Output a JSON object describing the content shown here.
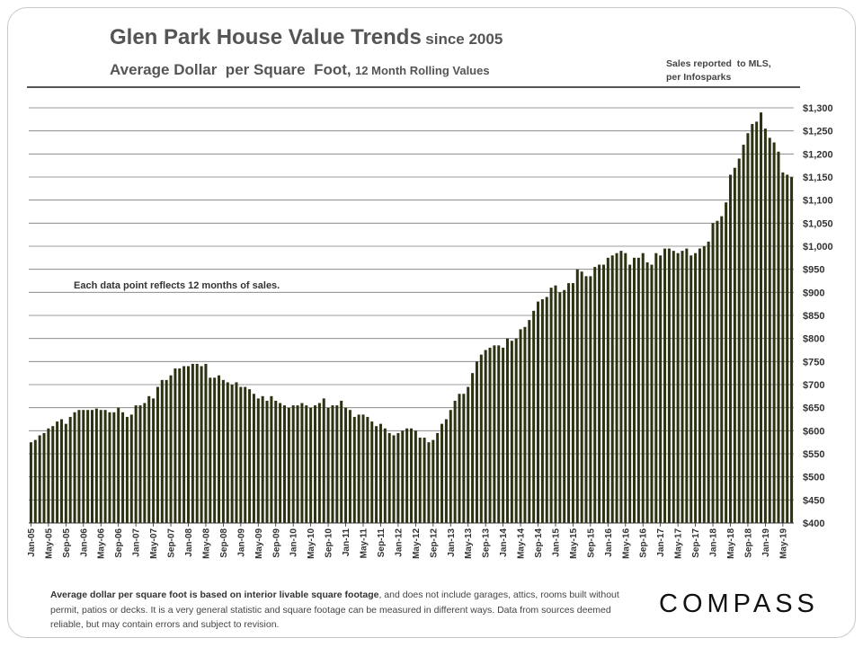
{
  "header": {
    "title": "Glen Park House Value Trends",
    "title_suffix": "since 2005",
    "subtitle": "Average Dollar  per Square  Foot,",
    "subtitle_suffix": "12 Month Rolling Values",
    "source_line1": "Sales reported  to MLS,",
    "source_line2": "per Infosparks"
  },
  "annotation": "Each data point reflects 12 months of sales.",
  "footnote": {
    "bold": "Average dollar per square foot is based on interior livable square footage",
    "rest": ", and does not include garages, attics, rooms built without permit, patios or decks. It is a very general statistic and square footage can be measured in different ways. Data from sources deemed reliable, but may contain errors and subject to revision."
  },
  "logo": "COMPASS",
  "chart_data": {
    "type": "bar",
    "title": "Glen Park House Value Trends since 2005",
    "ylabel": "Average Dollar per Square Foot",
    "ylim": [
      400,
      1300
    ],
    "ytick_step": 50,
    "yticks": [
      "$400",
      "$450",
      "$500",
      "$550",
      "$600",
      "$650",
      "$700",
      "$750",
      "$800",
      "$850",
      "$900",
      "$950",
      "$1,000",
      "$1,050",
      "$1,100",
      "$1,150",
      "$1,200",
      "$1,250",
      "$1,300"
    ],
    "x_tick_labels": [
      "Jan-05",
      "May-05",
      "Sep-05",
      "Jan-06",
      "May-06",
      "Sep-06",
      "Jan-07",
      "May-07",
      "Sep-07",
      "Jan-08",
      "May-08",
      "Sep-08",
      "Jan-09",
      "May-09",
      "Sep-09",
      "Jan-10",
      "May-10",
      "Sep-10",
      "Jan-11",
      "May-11",
      "Sep-11",
      "Jan-12",
      "May-12",
      "Sep-12",
      "Jan-13",
      "May-13",
      "Sep-13",
      "Jan-14",
      "May-14",
      "Sep-14",
      "Jan-15",
      "May-15",
      "Sep-15",
      "Jan-16",
      "May-16",
      "Sep-16",
      "Jan-17",
      "May-17",
      "Sep-17",
      "Jan-18",
      "May-18",
      "Sep-18",
      "Jan-19",
      "May-19"
    ],
    "start_month": "Jan-05",
    "values": [
      575,
      580,
      590,
      595,
      605,
      610,
      620,
      625,
      615,
      630,
      640,
      645,
      645,
      645,
      645,
      648,
      645,
      645,
      640,
      640,
      650,
      640,
      630,
      635,
      655,
      655,
      660,
      675,
      670,
      695,
      710,
      710,
      720,
      735,
      735,
      740,
      740,
      745,
      745,
      740,
      745,
      715,
      715,
      720,
      710,
      705,
      700,
      705,
      695,
      695,
      690,
      680,
      670,
      675,
      665,
      675,
      665,
      660,
      655,
      650,
      655,
      655,
      660,
      655,
      650,
      655,
      660,
      670,
      650,
      655,
      655,
      665,
      650,
      645,
      630,
      635,
      635,
      630,
      620,
      610,
      615,
      605,
      595,
      590,
      595,
      600,
      605,
      605,
      600,
      585,
      585,
      575,
      580,
      595,
      615,
      625,
      645,
      665,
      680,
      680,
      695,
      725,
      750,
      765,
      775,
      780,
      785,
      785,
      780,
      800,
      795,
      800,
      820,
      825,
      840,
      860,
      880,
      885,
      890,
      910,
      915,
      900,
      905,
      920,
      920,
      950,
      945,
      935,
      935,
      955,
      960,
      960,
      975,
      980,
      985,
      990,
      985,
      960,
      975,
      975,
      985,
      965,
      960,
      985,
      980,
      995,
      995,
      990,
      985,
      990,
      995,
      980,
      985,
      995,
      1000,
      1010,
      1050,
      1055,
      1065,
      1095,
      1155,
      1170,
      1190,
      1220,
      1245,
      1265,
      1270,
      1290,
      1255,
      1235,
      1225,
      1205,
      1160,
      1155,
      1150
    ]
  }
}
